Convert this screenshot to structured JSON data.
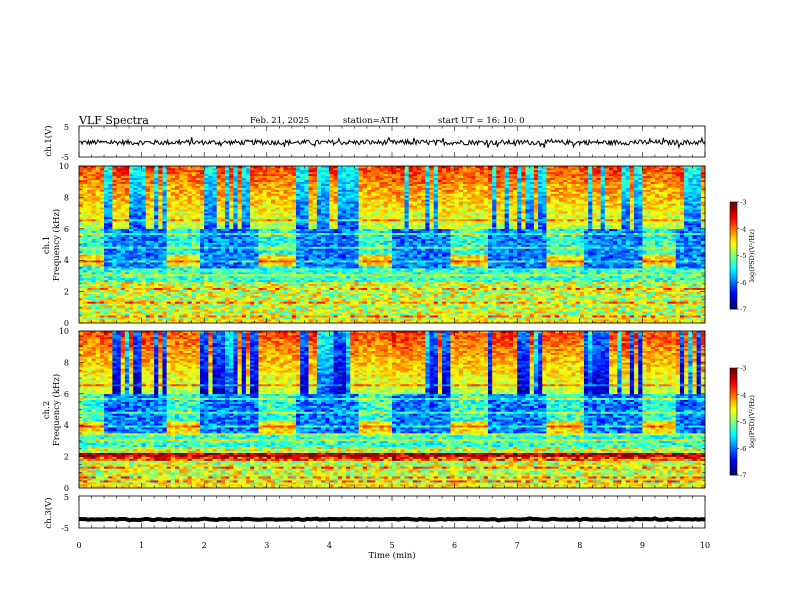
{
  "header": {
    "title": "VLF  Spectra",
    "date": "Feb. 21, 2025",
    "station": "station=ATH",
    "start_ut": "start  UT  =    16: 10: 0"
  },
  "chart_data": [
    {
      "type": "line",
      "panel": "ch1-waveform",
      "ylabel": "ch.1(V)",
      "ylim": [
        -5,
        5
      ],
      "yticks": [
        5,
        -5
      ],
      "xlim": [
        0,
        10
      ],
      "baseline": -0.3,
      "noise_amplitude": 0.8
    },
    {
      "type": "heatmap",
      "panel": "ch1-spectrogram",
      "ylabel": "ch.1\nFrequency (kHz)",
      "ylim": [
        0,
        10
      ],
      "yticks": [
        0,
        2,
        4,
        6,
        8,
        10
      ],
      "xlim": [
        0,
        10
      ],
      "colorbar": {
        "label": "log(PSD)(V²/Hz)",
        "range": [
          -7,
          -3
        ],
        "ticks": [
          -3,
          -4,
          -5,
          -6,
          -7
        ]
      },
      "signal_bursts_min": [
        [
          0,
          0.4
        ],
        [
          1.4,
          1.95
        ],
        [
          2.9,
          3.45
        ],
        [
          4.45,
          5.0
        ],
        [
          5.95,
          6.5
        ],
        [
          7.5,
          8.05
        ],
        [
          9.0,
          9.55
        ]
      ],
      "burst_band_khz": [
        3.6,
        4.4
      ]
    },
    {
      "type": "heatmap",
      "panel": "ch2-spectrogram",
      "ylabel": "ch.2\nFrequency (kHz)",
      "ylim": [
        0,
        10
      ],
      "yticks": [
        0,
        2,
        4,
        6,
        8,
        10
      ],
      "xlim": [
        0,
        10
      ],
      "colorbar": {
        "label": "log(PSD)(V²/Hz)",
        "range": [
          -7,
          -3
        ],
        "ticks": [
          -3,
          -4,
          -5,
          -6,
          -7
        ]
      },
      "signal_bursts_min": [
        [
          0,
          0.4
        ],
        [
          1.4,
          1.95
        ],
        [
          2.9,
          3.45
        ],
        [
          4.45,
          5.0
        ],
        [
          5.95,
          6.5
        ],
        [
          7.5,
          8.05
        ],
        [
          9.0,
          9.55
        ]
      ],
      "burst_band_khz": [
        3.4,
        4.2
      ]
    },
    {
      "type": "line",
      "panel": "ch3-waveform",
      "ylabel": "ch.3(V)",
      "ylim": [
        -5,
        5
      ],
      "yticks": [
        5,
        -5
      ],
      "xlim": [
        0,
        10
      ],
      "xticks": [
        0,
        1,
        2,
        3,
        4,
        5,
        6,
        7,
        8,
        9,
        10
      ],
      "xlabel": "Time  (min)",
      "baseline": -2.3,
      "noise_amplitude": 0.15
    }
  ]
}
